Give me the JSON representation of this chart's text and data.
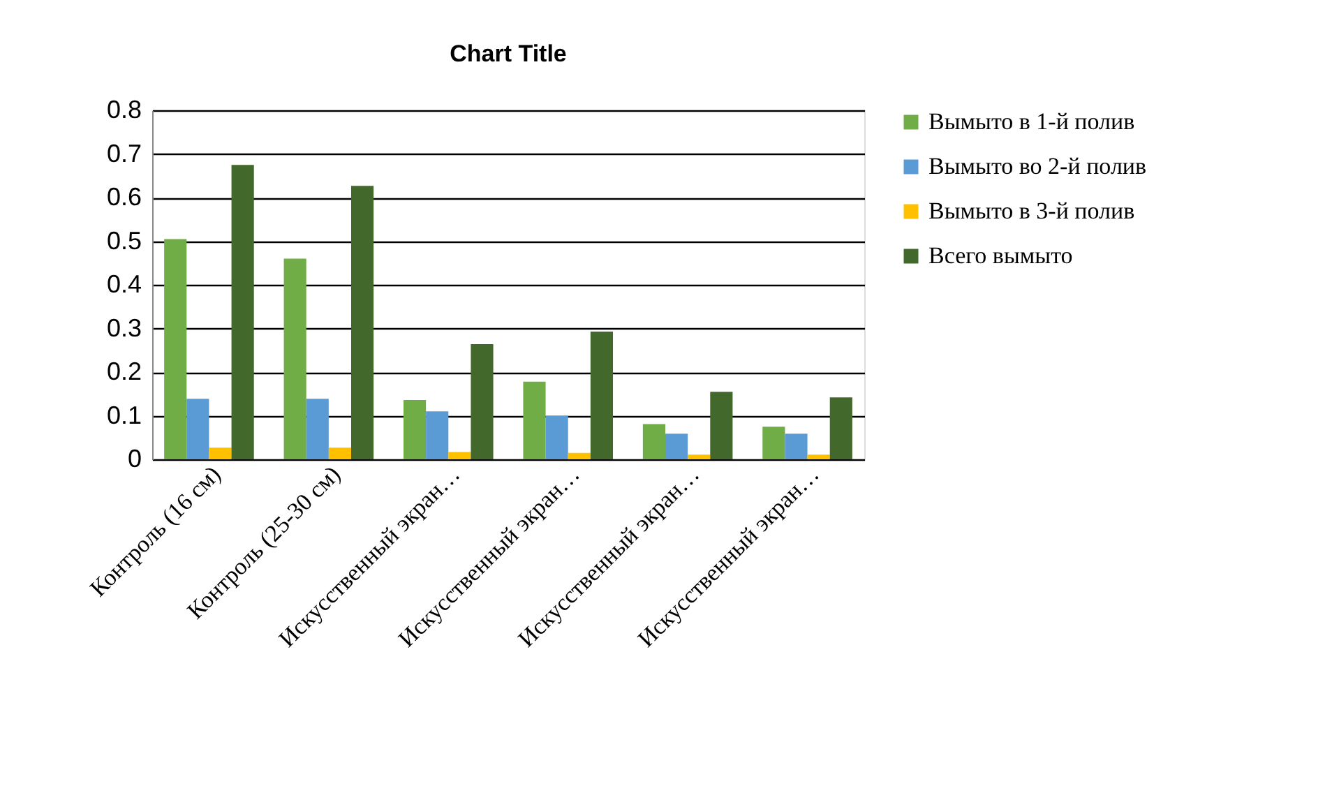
{
  "chart_data": {
    "type": "bar",
    "title": "Chart Title",
    "categories": [
      "Контроль (16 см)",
      "Контроль (25-30 см)",
      "Искусственный экран…",
      "Искусственный экран…",
      "Искусственный экран…",
      "Искусственный экран…"
    ],
    "series": [
      {
        "name": "Вымыто в 1-й полив",
        "color": "#70ad47",
        "values": [
          0.505,
          0.46,
          0.136,
          0.178,
          0.081,
          0.075
        ]
      },
      {
        "name": "Вымыто во 2-й полив",
        "color": "#5b9bd5",
        "values": [
          0.139,
          0.139,
          0.11,
          0.1,
          0.059,
          0.059
        ]
      },
      {
        "name": "Вымыто в 3-й полив",
        "color": "#ffc000",
        "values": [
          0.027,
          0.027,
          0.017,
          0.015,
          0.011,
          0.011
        ]
      },
      {
        "name": "Всего вымыто",
        "color": "#43682b",
        "values": [
          0.675,
          0.627,
          0.264,
          0.293,
          0.155,
          0.142
        ]
      }
    ],
    "ylim": [
      0,
      0.8
    ],
    "yticks": [
      0,
      0.1,
      0.2,
      0.3,
      0.4,
      0.5,
      0.6,
      0.7,
      0.8
    ],
    "grid": "y",
    "legend": "right"
  }
}
